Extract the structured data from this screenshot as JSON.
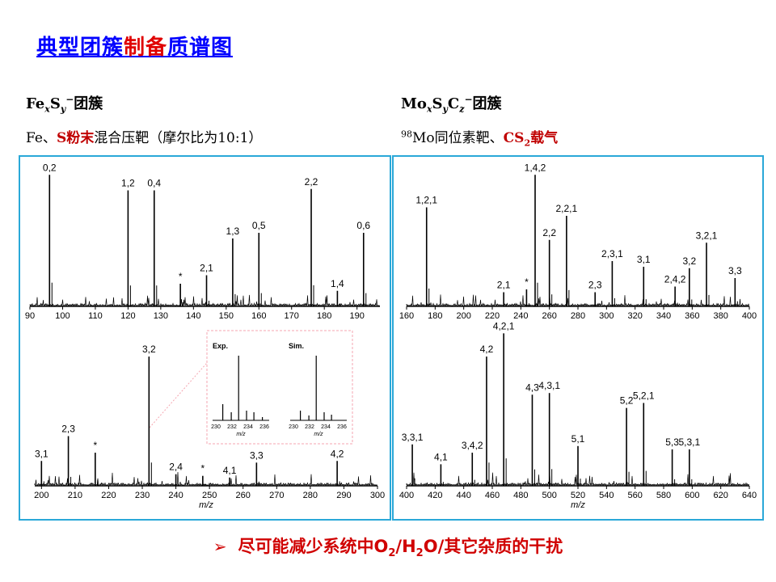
{
  "title": {
    "part1": "典型团簇",
    "part2": "制备",
    "part3": "质谱图"
  },
  "left": {
    "heading_fe": "Fe",
    "heading_x": "x",
    "heading_s": "S",
    "heading_y": "y",
    "heading_charge": "−",
    "heading_suffix": "团簇",
    "sub_fe": "Fe、",
    "sub_s": "S粉末",
    "sub_rest": "混合压靶（摩尔比为10:1）"
  },
  "right": {
    "heading_mo": "Mo",
    "heading_x": "x",
    "heading_s": "S",
    "heading_y": "y",
    "heading_c": "C",
    "heading_z": "z",
    "heading_charge": "−",
    "heading_suffix": "团簇",
    "sub_iso": "98",
    "sub_mo": "Mo同位素靶、",
    "sub_cs": "CS",
    "sub_2": "2",
    "sub_rest": "载气"
  },
  "inset": {
    "exp_label": "Exp.",
    "sim_label": "Sim."
  },
  "footer": {
    "arrow": "➢",
    "text_a": "尽可能减少系统中O",
    "sub1": "2",
    "text_b": "/H",
    "sub2": "2",
    "text_c": "O/其它杂质的干扰"
  },
  "chart_data": [
    {
      "type": "line",
      "xlim": [
        90,
        197
      ],
      "ylim": [
        0,
        1
      ],
      "xticks": [
        90,
        100,
        110,
        120,
        130,
        140,
        150,
        160,
        170,
        180,
        190
      ],
      "peaks": [
        {
          "x": 96,
          "y": 0.93,
          "label": "0,2"
        },
        {
          "x": 120,
          "y": 0.82,
          "label": "1,2"
        },
        {
          "x": 128,
          "y": 0.82,
          "label": "0,4"
        },
        {
          "x": 136,
          "y": 0.16,
          "label": "*"
        },
        {
          "x": 144,
          "y": 0.22,
          "label": "2,1"
        },
        {
          "x": 152,
          "y": 0.48,
          "label": "1,3"
        },
        {
          "x": 160,
          "y": 0.52,
          "label": "0,5"
        },
        {
          "x": 176,
          "y": 0.83,
          "label": "2,2"
        },
        {
          "x": 184,
          "y": 0.11,
          "label": "1,4"
        },
        {
          "x": 192,
          "y": 0.52,
          "label": "0,6"
        }
      ]
    },
    {
      "type": "line",
      "xlim": [
        198,
        300
      ],
      "ylim": [
        0,
        1
      ],
      "xlabel": "m/z",
      "xticks": [
        200,
        210,
        220,
        230,
        240,
        250,
        260,
        270,
        280,
        290,
        300
      ],
      "peaks": [
        {
          "x": 200,
          "y": 0.15,
          "label": "3,1"
        },
        {
          "x": 208,
          "y": 0.3,
          "label": "2,3"
        },
        {
          "x": 216,
          "y": 0.2,
          "label": "*"
        },
        {
          "x": 232,
          "y": 0.78,
          "label": "3,2"
        },
        {
          "x": 240,
          "y": 0.07,
          "label": "2,4"
        },
        {
          "x": 248,
          "y": 0.06,
          "label": "*"
        },
        {
          "x": 256,
          "y": 0.05,
          "label": "4,1"
        },
        {
          "x": 264,
          "y": 0.14,
          "label": "3,3"
        },
        {
          "x": 288,
          "y": 0.15,
          "label": "4,2"
        }
      ]
    },
    {
      "type": "line",
      "xlim": [
        160,
        400
      ],
      "ylim": [
        0,
        1
      ],
      "xticks": [
        160,
        180,
        200,
        220,
        240,
        260,
        280,
        300,
        320,
        340,
        360,
        380,
        400
      ],
      "peaks": [
        {
          "x": 174,
          "y": 0.7,
          "label": "1,2,1"
        },
        {
          "x": 228,
          "y": 0.1,
          "label": "2,1"
        },
        {
          "x": 244,
          "y": 0.12,
          "label": "*"
        },
        {
          "x": 250,
          "y": 0.93,
          "label": "1,4,2"
        },
        {
          "x": 260,
          "y": 0.47,
          "label": "2,2"
        },
        {
          "x": 272,
          "y": 0.64,
          "label": "2,2,1"
        },
        {
          "x": 292,
          "y": 0.1,
          "label": "2,3"
        },
        {
          "x": 304,
          "y": 0.32,
          "label": "2,3,1"
        },
        {
          "x": 326,
          "y": 0.28,
          "label": "3,1"
        },
        {
          "x": 348,
          "y": 0.14,
          "label": "2,4,2"
        },
        {
          "x": 358,
          "y": 0.27,
          "label": "3,2"
        },
        {
          "x": 370,
          "y": 0.45,
          "label": "3,2,1"
        },
        {
          "x": 390,
          "y": 0.2,
          "label": "3,3"
        }
      ]
    },
    {
      "type": "line",
      "xlim": [
        400,
        640
      ],
      "ylim": [
        0,
        1
      ],
      "xlabel": "m/z",
      "xticks": [
        400,
        420,
        440,
        460,
        480,
        500,
        520,
        540,
        560,
        580,
        600,
        620,
        640
      ],
      "peaks": [
        {
          "x": 404,
          "y": 0.25,
          "label": "3,3,1"
        },
        {
          "x": 424,
          "y": 0.13,
          "label": "4,1"
        },
        {
          "x": 446,
          "y": 0.2,
          "label": "3,4,2"
        },
        {
          "x": 456,
          "y": 0.78,
          "label": "4,2"
        },
        {
          "x": 468,
          "y": 0.92,
          "label": "4,2,1"
        },
        {
          "x": 488,
          "y": 0.55,
          "label": "4,3"
        },
        {
          "x": 500,
          "y": 0.56,
          "label": "4,3,1"
        },
        {
          "x": 520,
          "y": 0.24,
          "label": "5,1"
        },
        {
          "x": 554,
          "y": 0.47,
          "label": "5,2"
        },
        {
          "x": 566,
          "y": 0.5,
          "label": "5,2,1"
        },
        {
          "x": 586,
          "y": 0.22,
          "label": "5,3"
        },
        {
          "x": 598,
          "y": 0.22,
          "label": "5,3,1"
        }
      ]
    }
  ]
}
